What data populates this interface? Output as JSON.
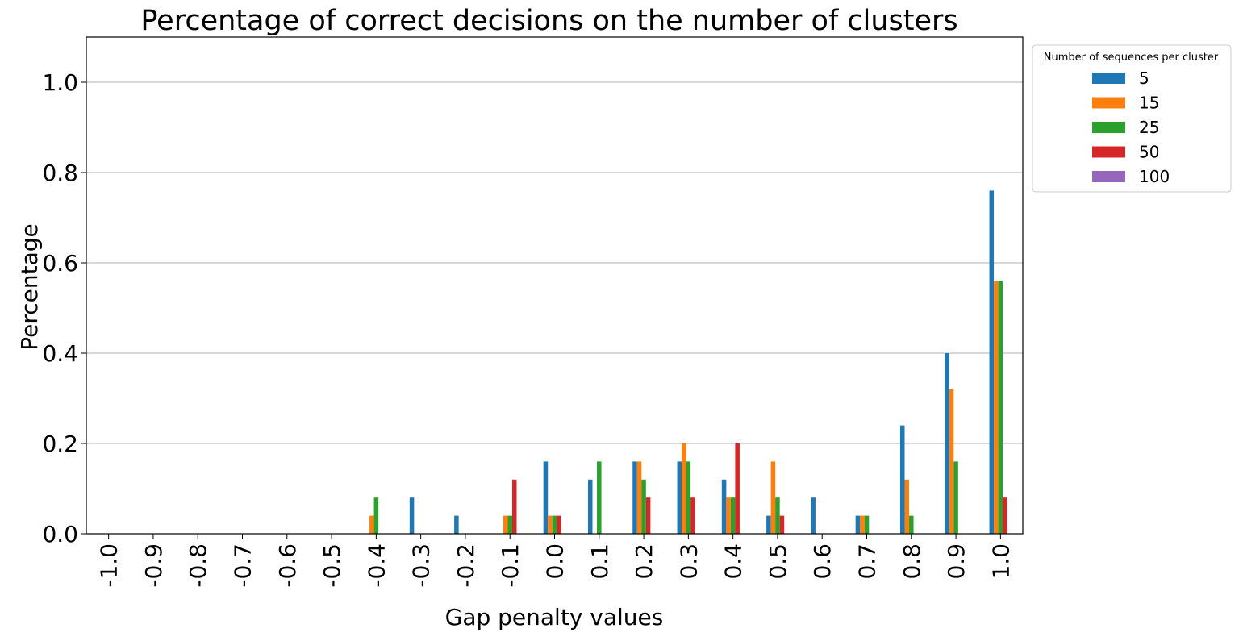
{
  "chart_data": {
    "type": "bar",
    "title": "Percentage of correct decisions on the number of clusters",
    "xlabel": "Gap penalty values",
    "ylabel": "Percentage",
    "categories": [
      "-1.0",
      "-0.9",
      "-0.8",
      "-0.7",
      "-0.6",
      "-0.5",
      "-0.4",
      "-0.3",
      "-0.2",
      "-0.1",
      "0.0",
      "0.1",
      "0.2",
      "0.3",
      "0.4",
      "0.5",
      "0.6",
      "0.7",
      "0.8",
      "0.9",
      "1.0"
    ],
    "ylim": [
      0,
      1.1
    ],
    "yticks": [
      {
        "value": 0,
        "label": "0.0"
      },
      {
        "value": 0.2,
        "label": "0.2"
      },
      {
        "value": 0.4,
        "label": "0.4"
      },
      {
        "value": 0.6,
        "label": "0.6"
      },
      {
        "value": 0.8,
        "label": "0.8"
      },
      {
        "value": 1.0,
        "label": "1.0"
      }
    ],
    "grid": "horizontal",
    "legend": {
      "title": "Number of sequences per cluster",
      "position": "outside-top-right"
    },
    "series": [
      {
        "name": "5",
        "color": "#1f77b4",
        "values": [
          0,
          0,
          0,
          0,
          0,
          0,
          0,
          0.08,
          0.04,
          0,
          0.16,
          0.12,
          0.16,
          0.16,
          0.12,
          0.04,
          0.08,
          0.04,
          0.24,
          0.4,
          0.76
        ]
      },
      {
        "name": "15",
        "color": "#ff7f0e",
        "values": [
          0,
          0,
          0,
          0,
          0,
          0,
          0.04,
          0,
          0,
          0.04,
          0.04,
          0,
          0.16,
          0.2,
          0.08,
          0.16,
          0,
          0.04,
          0.12,
          0.32,
          0.56
        ]
      },
      {
        "name": "25",
        "color": "#2ca02c",
        "values": [
          0,
          0,
          0,
          0,
          0,
          0,
          0.08,
          0,
          0,
          0.04,
          0.04,
          0.16,
          0.12,
          0.16,
          0.08,
          0.08,
          0,
          0.04,
          0.04,
          0.16,
          0.56
        ]
      },
      {
        "name": "50",
        "color": "#d62728",
        "values": [
          0,
          0,
          0,
          0,
          0,
          0,
          0,
          0,
          0,
          0.12,
          0.04,
          0,
          0.08,
          0.08,
          0.2,
          0.04,
          0,
          0,
          0,
          0,
          0.08
        ]
      },
      {
        "name": "100",
        "color": "#9467bd",
        "values": [
          0,
          0,
          0,
          0,
          0,
          0,
          0,
          0,
          0,
          0,
          0,
          0,
          0,
          0,
          0,
          0,
          0,
          0,
          0,
          0,
          0
        ]
      }
    ]
  }
}
